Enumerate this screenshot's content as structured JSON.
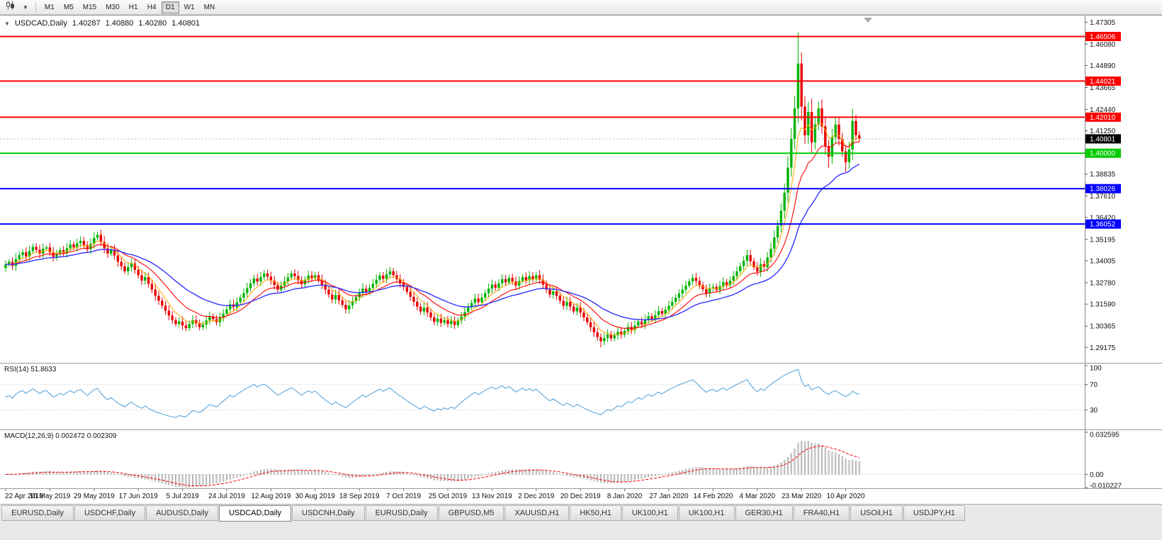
{
  "toolbar": {
    "chart_type_icon": "candlestick-chart-icon",
    "dropdown_icon": "chevron-down-icon",
    "timeframes": [
      {
        "label": "M1",
        "active": false
      },
      {
        "label": "M5",
        "active": false
      },
      {
        "label": "M15",
        "active": false
      },
      {
        "label": "M30",
        "active": false
      },
      {
        "label": "H1",
        "active": false
      },
      {
        "label": "H4",
        "active": false
      },
      {
        "label": "D1",
        "active": true
      },
      {
        "label": "W1",
        "active": false
      },
      {
        "label": "MN",
        "active": false
      }
    ]
  },
  "chart": {
    "title": {
      "symbol_period": "USDCAD,Daily",
      "open": "1.40287",
      "high": "1.40880",
      "low": "1.40280",
      "close": "1.40801"
    },
    "rsi_label": "RSI(14) 51.8633",
    "macd_label": "MACD(12,26,9) 0.002472 0.002309",
    "menu_icon": "chevron-down-icon",
    "shift_marker_icon": "chart-shift-triangle-icon"
  },
  "tabs": [
    {
      "label": "EURUSD,Daily",
      "active": false
    },
    {
      "label": "USDCHF,Daily",
      "active": false
    },
    {
      "label": "AUDUSD,Daily",
      "active": false
    },
    {
      "label": "USDCAD,Daily",
      "active": true
    },
    {
      "label": "USDCNH,Daily",
      "active": false
    },
    {
      "label": "EURUSD,Daily",
      "active": false
    },
    {
      "label": "GBPUSD,M5",
      "active": false
    },
    {
      "label": "XAUUSD,H1",
      "active": false
    },
    {
      "label": "HK50,H1",
      "active": false
    },
    {
      "label": "UK100,H1",
      "active": false
    },
    {
      "label": "UK100,H1",
      "active": false
    },
    {
      "label": "GER30,H1",
      "active": false
    },
    {
      "label": "FRA40,H1",
      "active": false
    },
    {
      "label": "USOil,H1",
      "active": false
    },
    {
      "label": "USDJPY,H1",
      "active": false
    }
  ],
  "chart_data": {
    "type": "candlestick",
    "symbol": "USDCAD",
    "timeframe": "Daily",
    "current_price": 1.40801,
    "colors": {
      "up_candle": "#00b300",
      "down_candle": "#e60000",
      "ma_fast": "#ffa500",
      "ma_mid": "#ff0000",
      "ma_slow": "#3333ff",
      "rsi_line": "#4f9ed6",
      "macd_hist_fill": "#cfcfcf",
      "macd_hist_stroke": "#8f8f8f",
      "macd_signal": "#ff0000",
      "hline_red": "#ff0000",
      "hline_green": "#00cc00",
      "hline_blue": "#0000ff",
      "current_label_bg": "#000000"
    },
    "price_axis_ticks": [
      1.47305,
      1.4608,
      1.4489,
      1.43665,
      1.4244,
      1.4125,
      1.40025,
      1.38835,
      1.3761,
      1.3642,
      1.35195,
      1.34005,
      1.3278,
      1.3159,
      1.30365,
      1.29175
    ],
    "hlines": [
      {
        "price": 1.46506,
        "label": "1.46506",
        "color": "#ff0000"
      },
      {
        "price": 1.44021,
        "label": "1.44021",
        "color": "#ff0000"
      },
      {
        "price": 1.4201,
        "label": "1.42010",
        "color": "#ff0000"
      },
      {
        "price": 1.4,
        "label": "1.40000",
        "color": "#00cc00"
      },
      {
        "price": 1.38026,
        "label": "1.38026",
        "color": "#0000ff"
      },
      {
        "price": 1.36052,
        "label": "1.36052",
        "color": "#0000ff"
      }
    ],
    "current_price_label": "1.40801",
    "x_tick_labels": [
      "22 Apr 2019",
      "10 May 2019",
      "29 May 2019",
      "17 Jun 2019",
      "5 Jul 2019",
      "24 Jul 2019",
      "12 Aug 2019",
      "30 Aug 2019",
      "18 Sep 2019",
      "7 Oct 2019",
      "25 Oct 2019",
      "13 Nov 2019",
      "2 Dec 2019",
      "20 Dec 2019",
      "8 Jan 2020",
      "27 Jan 2020",
      "14 Feb 2020",
      "4 Mar 2020",
      "23 Mar 2020",
      "10 Apr 2020"
    ],
    "x_tick_every": 13,
    "first_open": 1.336,
    "closes": [
      1.338,
      1.3395,
      1.3372,
      1.341,
      1.3432,
      1.3448,
      1.3425,
      1.3455,
      1.3478,
      1.3462,
      1.344,
      1.3468,
      1.3475,
      1.3448,
      1.3422,
      1.3438,
      1.346,
      1.3445,
      1.347,
      1.3492,
      1.3475,
      1.3498,
      1.3512,
      1.3488,
      1.3465,
      1.3495,
      1.3528,
      1.3545,
      1.3505,
      1.347,
      1.344,
      1.3462,
      1.343,
      1.3395,
      1.337,
      1.3342,
      1.3365,
      1.3385,
      1.335,
      1.332,
      1.329,
      1.331,
      1.3272,
      1.324,
      1.3205,
      1.3178,
      1.315,
      1.3122,
      1.3095,
      1.307,
      1.3048,
      1.3062,
      1.304,
      1.3025,
      1.3048,
      1.307,
      1.3052,
      1.303,
      1.3045,
      1.3068,
      1.309,
      1.3075,
      1.3058,
      1.3082,
      1.3105,
      1.313,
      1.3158,
      1.3142,
      1.317,
      1.3195,
      1.322,
      1.3248,
      1.3275,
      1.3302,
      1.3285,
      1.331,
      1.333,
      1.3312,
      1.329,
      1.3265,
      1.324,
      1.3262,
      1.3285,
      1.3308,
      1.333,
      1.3315,
      1.3292,
      1.327,
      1.3295,
      1.3318,
      1.3305,
      1.332,
      1.3295,
      1.3268,
      1.324,
      1.3212,
      1.3185,
      1.321,
      1.318,
      1.3155,
      1.313,
      1.3152,
      1.3175,
      1.3198,
      1.322,
      1.3245,
      1.3225,
      1.325,
      1.3272,
      1.3295,
      1.3318,
      1.33,
      1.3325,
      1.3342,
      1.332,
      1.3298,
      1.3275,
      1.3255,
      1.3228,
      1.32,
      1.3172,
      1.3145,
      1.3118,
      1.314,
      1.3112,
      1.3085,
      1.306,
      1.3078,
      1.3055,
      1.307,
      1.3048,
      1.3065,
      1.3042,
      1.3068,
      1.309,
      1.3115,
      1.314,
      1.3165,
      1.319,
      1.317,
      1.3195,
      1.322,
      1.3245,
      1.3268,
      1.325,
      1.3275,
      1.3298,
      1.328,
      1.3305,
      1.3285,
      1.3262,
      1.3288,
      1.331,
      1.3292,
      1.3315,
      1.3298,
      1.332,
      1.3295,
      1.3268,
      1.324,
      1.3212,
      1.323,
      1.3205,
      1.3178,
      1.315,
      1.3172,
      1.3145,
      1.3118,
      1.314,
      1.3112,
      1.3085,
      1.3058,
      1.303,
      1.3002,
      1.2975,
      1.2952,
      1.297,
      1.299,
      1.2968,
      1.2985,
      1.3005,
      1.2988,
      1.301,
      1.3032,
      1.3015,
      1.304,
      1.3062,
      1.3045,
      1.307,
      1.3092,
      1.3075,
      1.3098,
      1.312,
      1.3105,
      1.3128,
      1.315,
      1.3172,
      1.3195,
      1.3218,
      1.324,
      1.3262,
      1.3285,
      1.3305,
      1.3288,
      1.3265,
      1.3242,
      1.322,
      1.3245,
      1.3255,
      1.3238,
      1.326,
      1.3282,
      1.3265,
      1.329,
      1.3315,
      1.3342,
      1.337,
      1.34,
      1.3432,
      1.3398,
      1.3365,
      1.334,
      1.3382,
      1.3365,
      1.342,
      1.3468,
      1.353,
      1.3595,
      1.368,
      1.378,
      1.392,
      1.408,
      1.425,
      1.45,
      1.426,
      1.41,
      1.423,
      1.406,
      1.416,
      1.425,
      1.415,
      1.404,
      1.398,
      1.409,
      1.416,
      1.408,
      1.401,
      1.395,
      1.402,
      1.418,
      1.41,
      1.40801
    ],
    "high_overrides": {
      "27": 1.3562,
      "233": 1.4675,
      "234": 1.456,
      "249": 1.4248
    },
    "low_overrides": {
      "175": 1.2918,
      "242": 1.392,
      "247": 1.3895
    },
    "moving_averages": [
      {
        "period": 6,
        "color": "#ffa500",
        "width": 1
      },
      {
        "period": 14,
        "color": "#ff0000",
        "width": 1.1
      },
      {
        "period": 30,
        "color": "#3333ff",
        "width": 1.4
      }
    ],
    "rsi": {
      "period": 14,
      "value": 51.8633,
      "color": "#4f9ed6",
      "levels": [
        70,
        30
      ],
      "axis": [
        {
          "value": 100,
          "label": "100"
        },
        {
          "value": 70,
          "label": "70"
        },
        {
          "value": 30,
          "label": "30"
        }
      ]
    },
    "macd": {
      "fast": 12,
      "slow": 26,
      "signal": 9,
      "value": 0.002472,
      "signal_value": 0.002309,
      "axis_max": 0.032595,
      "axis_min": -0.010227,
      "axis": [
        {
          "value": 0.032595,
          "label": "0.032595"
        },
        {
          "value": 0,
          "label": "0.00"
        },
        {
          "value": -0.010227,
          "label": "-0.010227"
        }
      ]
    }
  }
}
